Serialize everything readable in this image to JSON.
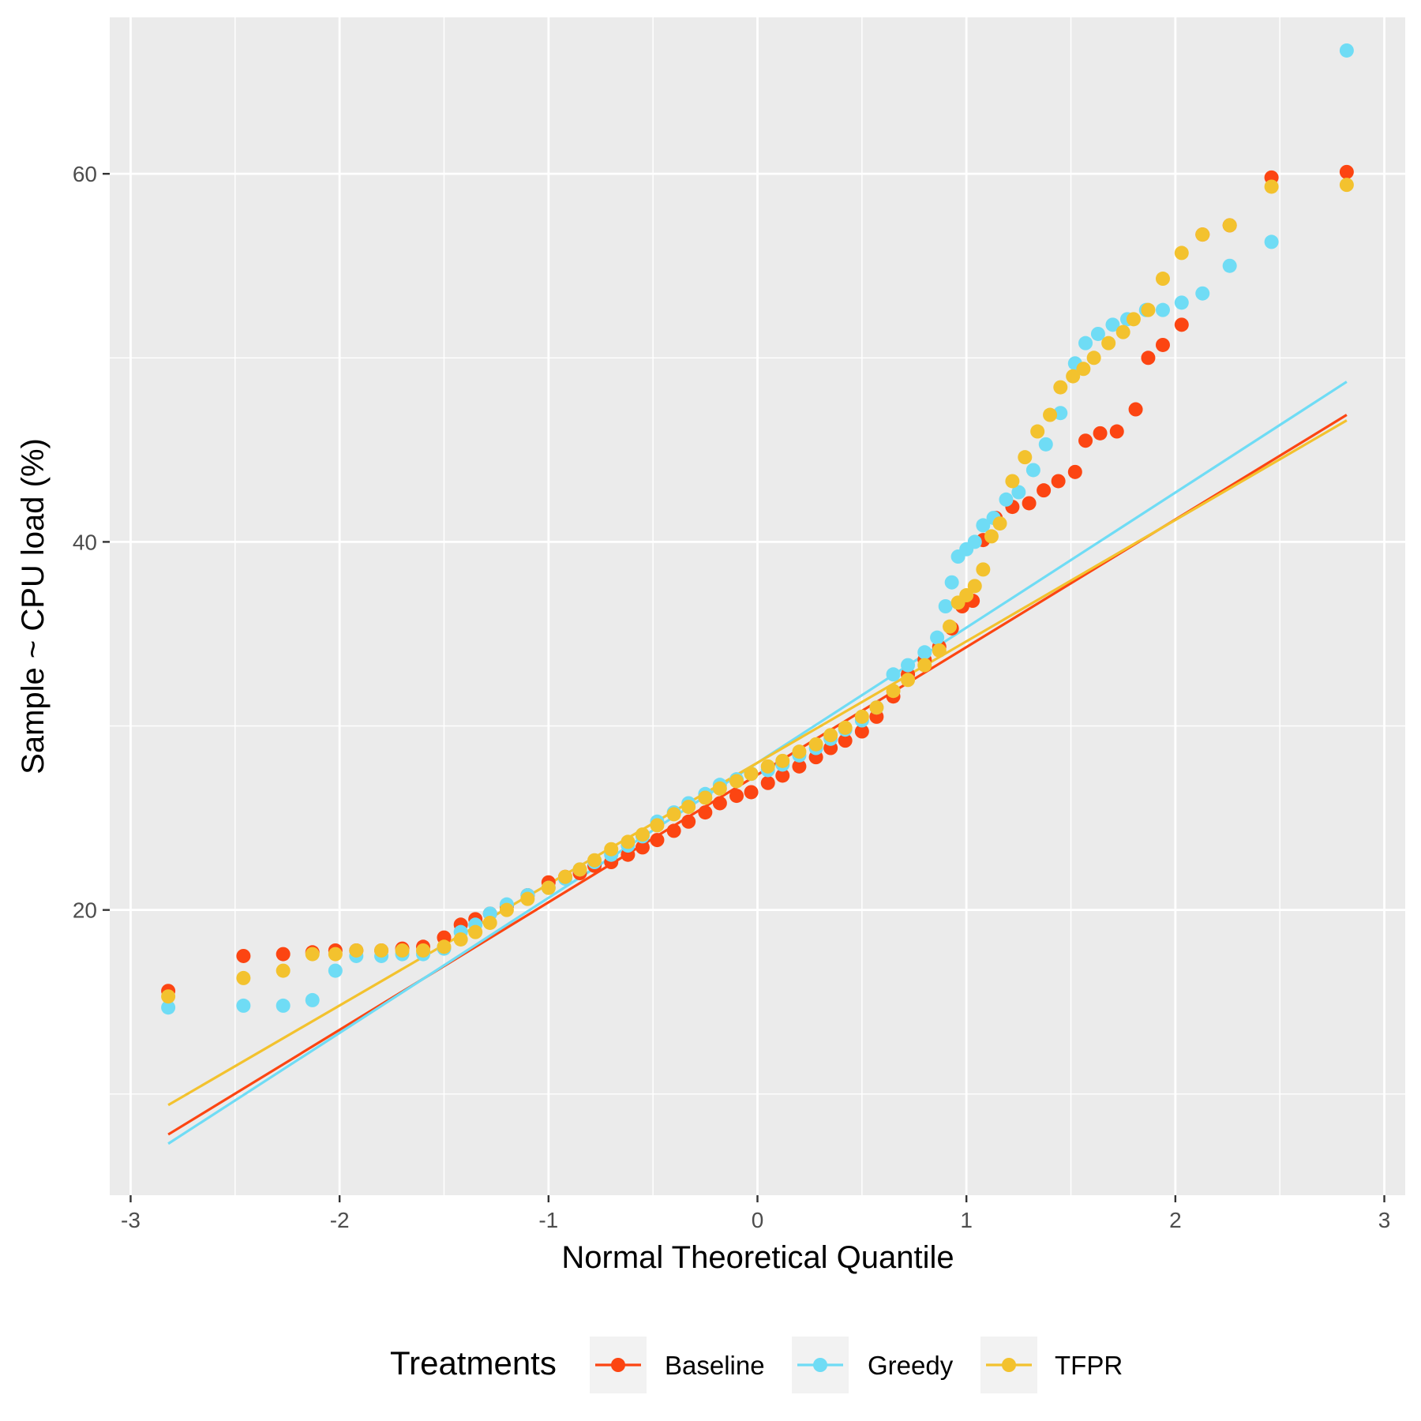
{
  "chart_data": {
    "type": "scatter",
    "xlabel": "Normal Theoretical Quantile",
    "ylabel": "Sample ~ CPU load (%)",
    "xlim": [
      -3.1,
      3.1
    ],
    "ylim": [
      4.5,
      68.5
    ],
    "x_ticks": [
      -3,
      -2,
      -1,
      0,
      1,
      2,
      3
    ],
    "y_ticks": [
      20,
      40,
      60
    ],
    "grid": true,
    "legend": {
      "title": "Treatments",
      "position": "bottom"
    },
    "series": [
      {
        "name": "Baseline",
        "color": "#fc4512",
        "points": [
          [
            -2.82,
            15.6
          ],
          [
            -2.46,
            17.5
          ],
          [
            -2.27,
            17.6
          ],
          [
            -2.13,
            17.7
          ],
          [
            -2.02,
            17.8
          ],
          [
            -1.92,
            17.8
          ],
          [
            -1.8,
            17.8
          ],
          [
            -1.7,
            17.9
          ],
          [
            -1.6,
            18.0
          ],
          [
            -1.5,
            18.5
          ],
          [
            -1.42,
            19.2
          ],
          [
            -1.35,
            19.5
          ],
          [
            -1.28,
            19.8
          ],
          [
            -1.2,
            20.2
          ],
          [
            -1.1,
            20.8
          ],
          [
            -1.0,
            21.5
          ],
          [
            -0.92,
            21.8
          ],
          [
            -0.85,
            22.0
          ],
          [
            -0.78,
            22.4
          ],
          [
            -0.7,
            22.6
          ],
          [
            -0.62,
            23.0
          ],
          [
            -0.55,
            23.4
          ],
          [
            -0.48,
            23.8
          ],
          [
            -0.4,
            24.3
          ],
          [
            -0.33,
            24.8
          ],
          [
            -0.25,
            25.3
          ],
          [
            -0.18,
            25.8
          ],
          [
            -0.1,
            26.2
          ],
          [
            -0.03,
            26.4
          ],
          [
            0.05,
            26.9
          ],
          [
            0.12,
            27.3
          ],
          [
            0.2,
            27.8
          ],
          [
            0.28,
            28.3
          ],
          [
            0.35,
            28.8
          ],
          [
            0.42,
            29.2
          ],
          [
            0.5,
            29.7
          ],
          [
            0.57,
            30.5
          ],
          [
            0.65,
            31.6
          ],
          [
            0.72,
            32.8
          ],
          [
            0.8,
            33.6
          ],
          [
            0.87,
            34.3
          ],
          [
            0.93,
            35.3
          ],
          [
            0.98,
            36.5
          ],
          [
            1.03,
            36.8
          ],
          [
            1.08,
            40.1
          ],
          [
            1.14,
            41.3
          ],
          [
            1.22,
            41.9
          ],
          [
            1.3,
            42.1
          ],
          [
            1.37,
            42.8
          ],
          [
            1.44,
            43.3
          ],
          [
            1.52,
            43.8
          ],
          [
            1.57,
            45.5
          ],
          [
            1.64,
            45.9
          ],
          [
            1.72,
            46.0
          ],
          [
            1.81,
            47.2
          ],
          [
            1.87,
            50.0
          ],
          [
            1.94,
            50.7
          ],
          [
            2.03,
            51.8
          ],
          [
            2.13,
            56.7
          ],
          [
            2.26,
            57.2
          ],
          [
            2.46,
            59.8
          ],
          [
            2.82,
            60.1
          ]
        ]
      },
      {
        "name": "Greedy",
        "color": "#6fdcf5",
        "points": [
          [
            -2.82,
            14.7
          ],
          [
            -2.46,
            14.8
          ],
          [
            -2.27,
            14.8
          ],
          [
            -2.13,
            15.1
          ],
          [
            -2.02,
            16.7
          ],
          [
            -1.92,
            17.5
          ],
          [
            -1.8,
            17.5
          ],
          [
            -1.7,
            17.6
          ],
          [
            -1.6,
            17.6
          ],
          [
            -1.5,
            17.9
          ],
          [
            -1.42,
            18.8
          ],
          [
            -1.35,
            19.2
          ],
          [
            -1.28,
            19.8
          ],
          [
            -1.2,
            20.3
          ],
          [
            -1.1,
            20.8
          ],
          [
            -1.0,
            21.2
          ],
          [
            -0.92,
            21.7
          ],
          [
            -0.85,
            22.2
          ],
          [
            -0.78,
            22.6
          ],
          [
            -0.7,
            23.0
          ],
          [
            -0.62,
            23.5
          ],
          [
            -0.55,
            24.0
          ],
          [
            -0.48,
            24.8
          ],
          [
            -0.4,
            25.3
          ],
          [
            -0.33,
            25.8
          ],
          [
            -0.25,
            26.3
          ],
          [
            -0.18,
            26.8
          ],
          [
            -0.1,
            27.1
          ],
          [
            -0.03,
            27.4
          ],
          [
            0.05,
            27.6
          ],
          [
            0.12,
            27.9
          ],
          [
            0.2,
            28.4
          ],
          [
            0.28,
            28.8
          ],
          [
            0.35,
            29.3
          ],
          [
            0.42,
            29.8
          ],
          [
            0.5,
            30.3
          ],
          [
            0.57,
            31.0
          ],
          [
            0.65,
            32.8
          ],
          [
            0.72,
            33.3
          ],
          [
            0.8,
            34.0
          ],
          [
            0.86,
            34.8
          ],
          [
            0.9,
            36.5
          ],
          [
            0.93,
            37.8
          ],
          [
            0.96,
            39.2
          ],
          [
            1.0,
            39.6
          ],
          [
            1.04,
            40.0
          ],
          [
            1.08,
            40.9
          ],
          [
            1.13,
            41.3
          ],
          [
            1.19,
            42.3
          ],
          [
            1.25,
            42.7
          ],
          [
            1.32,
            43.9
          ],
          [
            1.38,
            45.3
          ],
          [
            1.45,
            47.0
          ],
          [
            1.52,
            49.7
          ],
          [
            1.57,
            50.8
          ],
          [
            1.63,
            51.3
          ],
          [
            1.7,
            51.8
          ],
          [
            1.77,
            52.1
          ],
          [
            1.86,
            52.6
          ],
          [
            1.94,
            52.6
          ],
          [
            2.03,
            53.0
          ],
          [
            2.13,
            53.5
          ],
          [
            2.26,
            55.0
          ],
          [
            2.46,
            56.3
          ],
          [
            2.82,
            66.7
          ]
        ]
      },
      {
        "name": "TFPR",
        "color": "#f3c22e",
        "points": [
          [
            -2.82,
            15.3
          ],
          [
            -2.46,
            16.3
          ],
          [
            -2.27,
            16.7
          ],
          [
            -2.13,
            17.6
          ],
          [
            -2.02,
            17.6
          ],
          [
            -1.92,
            17.8
          ],
          [
            -1.8,
            17.8
          ],
          [
            -1.7,
            17.8
          ],
          [
            -1.6,
            17.8
          ],
          [
            -1.5,
            18.0
          ],
          [
            -1.42,
            18.4
          ],
          [
            -1.35,
            18.8
          ],
          [
            -1.28,
            19.3
          ],
          [
            -1.2,
            20.0
          ],
          [
            -1.1,
            20.6
          ],
          [
            -1.0,
            21.2
          ],
          [
            -0.92,
            21.8
          ],
          [
            -0.85,
            22.2
          ],
          [
            -0.78,
            22.7
          ],
          [
            -0.7,
            23.3
          ],
          [
            -0.62,
            23.7
          ],
          [
            -0.55,
            24.1
          ],
          [
            -0.48,
            24.6
          ],
          [
            -0.4,
            25.2
          ],
          [
            -0.33,
            25.6
          ],
          [
            -0.25,
            26.1
          ],
          [
            -0.18,
            26.6
          ],
          [
            -0.1,
            27.0
          ],
          [
            -0.03,
            27.4
          ],
          [
            0.05,
            27.8
          ],
          [
            0.12,
            28.1
          ],
          [
            0.2,
            28.6
          ],
          [
            0.28,
            29.0
          ],
          [
            0.35,
            29.5
          ],
          [
            0.42,
            29.9
          ],
          [
            0.5,
            30.5
          ],
          [
            0.57,
            31.0
          ],
          [
            0.65,
            31.9
          ],
          [
            0.72,
            32.5
          ],
          [
            0.8,
            33.3
          ],
          [
            0.87,
            34.1
          ],
          [
            0.92,
            35.4
          ],
          [
            0.96,
            36.7
          ],
          [
            1.0,
            37.1
          ],
          [
            1.04,
            37.6
          ],
          [
            1.08,
            38.5
          ],
          [
            1.12,
            40.3
          ],
          [
            1.16,
            41.0
          ],
          [
            1.22,
            43.3
          ],
          [
            1.28,
            44.6
          ],
          [
            1.34,
            46.0
          ],
          [
            1.4,
            46.9
          ],
          [
            1.45,
            48.4
          ],
          [
            1.51,
            49.0
          ],
          [
            1.56,
            49.4
          ],
          [
            1.61,
            50.0
          ],
          [
            1.68,
            50.8
          ],
          [
            1.75,
            51.4
          ],
          [
            1.8,
            52.1
          ],
          [
            1.87,
            52.6
          ],
          [
            1.94,
            54.3
          ],
          [
            2.03,
            55.7
          ],
          [
            2.13,
            56.7
          ],
          [
            2.26,
            57.2
          ],
          [
            2.46,
            59.3
          ],
          [
            2.82,
            59.4
          ]
        ]
      }
    ],
    "reference_lines": [
      {
        "name": "Baseline",
        "color": "#fc4512",
        "from": [
          -2.82,
          7.8
        ],
        "to": [
          2.82,
          46.9
        ]
      },
      {
        "name": "Greedy",
        "color": "#6fdcf5",
        "from": [
          -2.82,
          7.3
        ],
        "to": [
          2.82,
          48.7
        ]
      },
      {
        "name": "TFPR",
        "color": "#f3c22e",
        "from": [
          -2.82,
          9.4
        ],
        "to": [
          2.82,
          46.6
        ]
      }
    ]
  }
}
